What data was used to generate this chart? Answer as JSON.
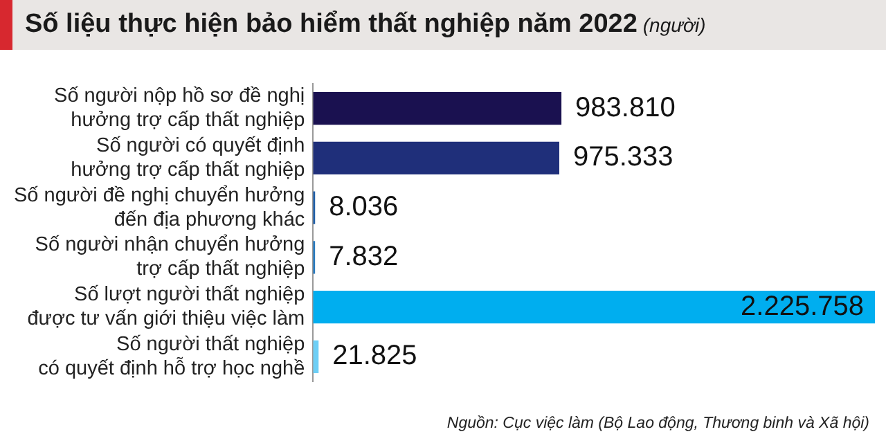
{
  "chart_data": {
    "type": "bar",
    "orientation": "horizontal",
    "title": "Số liệu thực hiện bảo hiểm thất nghiệp năm 2022",
    "subtitle": "(người)",
    "categories": [
      "Số người nộp hồ sơ đề nghị\nhưởng trợ cấp thất nghiệp",
      "Số người có quyết định\nhưởng trợ cấp thất nghiệp",
      "Số người đề nghị chuyển hưởng\nđến địa phương khác",
      "Số người nhận chuyển hưởng\ntrợ cấp thất nghiệp",
      "Số lượt người thất nghiệp\nđược tư vấn giới thiệu việc làm",
      "Số người thất nghiệp\ncó quyết định hỗ trợ học nghề"
    ],
    "values": [
      983810,
      975333,
      8036,
      7832,
      2225758,
      21825
    ],
    "value_labels": [
      "983.810",
      "975.333",
      "8.036",
      "7.832",
      "2.225.758",
      "21.825"
    ],
    "colors": [
      "#1a1150",
      "#1f2f7a",
      "#1f5fa8",
      "#2679c0",
      "#00aeef",
      "#6dcff6"
    ],
    "grid": false,
    "legend": false,
    "annotations": [
      "Nguồn: Cục việc làm (Bộ Lao động, Thương binh và Xã hội)"
    ]
  }
}
